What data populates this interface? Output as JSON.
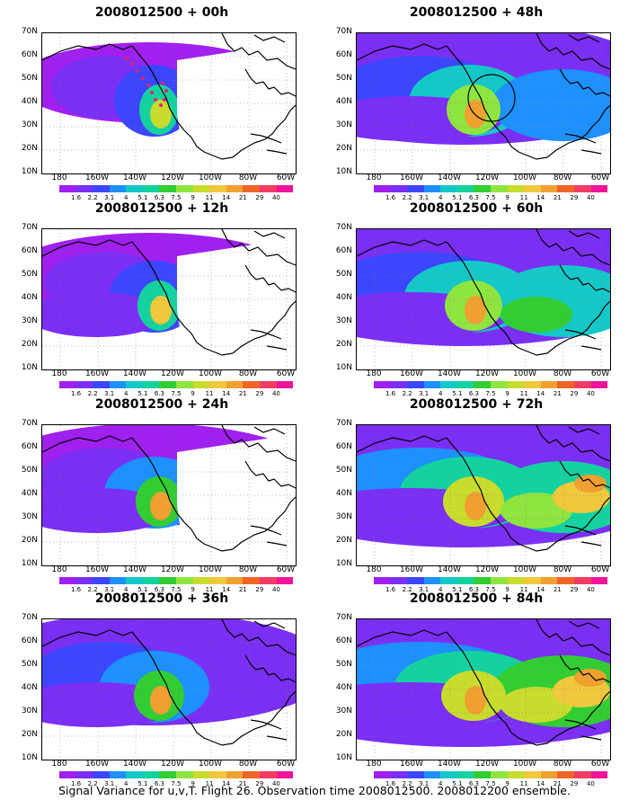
{
  "caption": "Signal Variance for u,v,T. Flight 26. Observation time 2008012500. 2008012200 ensemble.",
  "lat_labels": [
    "70N",
    "60N",
    "50N",
    "40N",
    "30N",
    "20N",
    "10N"
  ],
  "lon_labels": [
    "180",
    "160W",
    "140W",
    "120W",
    "100W",
    "80W",
    "60W"
  ],
  "colorbar": {
    "labels": [
      "1.6",
      "2.2",
      "3.1",
      "4",
      "5.1",
      "6.3",
      "7.5",
      "9",
      "11",
      "14",
      "21",
      "29",
      "40"
    ],
    "colors": [
      "#a020f0",
      "#7b2ff5",
      "#3c46ff",
      "#1e90ff",
      "#14c8c8",
      "#14d2a0",
      "#32cd32",
      "#8ee53f",
      "#c8dc2d",
      "#f0c83c",
      "#f0a030",
      "#f06428",
      "#f03c64",
      "#f0149a"
    ]
  },
  "panels": [
    {
      "title": "2008012500 + 00h",
      "level": 0,
      "circle": false,
      "dots": true
    },
    {
      "title": "2008012500 + 48h",
      "level": 4,
      "circle": true,
      "dots": false
    },
    {
      "title": "2008012500 + 12h",
      "level": 1,
      "circle": false,
      "dots": false
    },
    {
      "title": "2008012500 + 60h",
      "level": 5,
      "circle": false,
      "dots": false
    },
    {
      "title": "2008012500 + 24h",
      "level": 2,
      "circle": false,
      "dots": false
    },
    {
      "title": "2008012500 + 72h",
      "level": 6,
      "circle": false,
      "dots": false
    },
    {
      "title": "2008012500 + 36h",
      "level": 3,
      "circle": false,
      "dots": false
    },
    {
      "title": "2008012500 + 84h",
      "level": 7,
      "circle": false,
      "dots": false
    }
  ]
}
